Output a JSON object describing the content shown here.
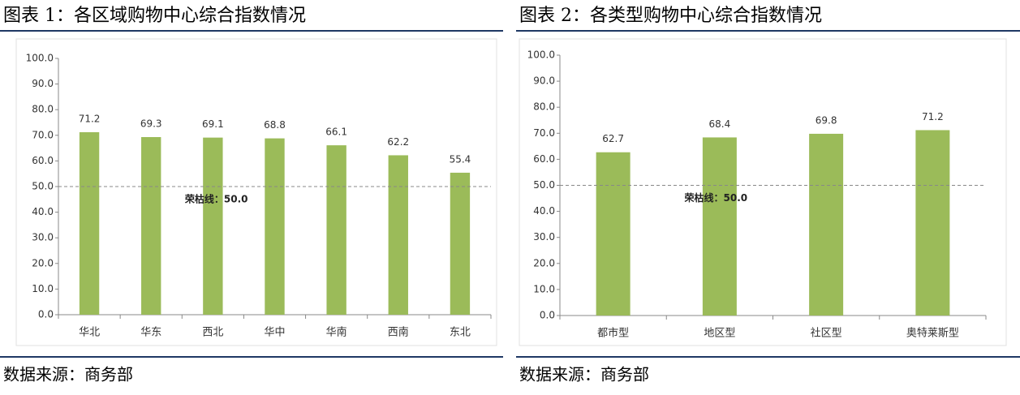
{
  "chart_data": [
    {
      "type": "bar",
      "title": "图表 1：各区域购物中心综合指数情况",
      "source": "数据来源：商务部",
      "categories": [
        "华北",
        "华东",
        "西北",
        "华中",
        "华南",
        "西南",
        "东北"
      ],
      "values": [
        71.2,
        69.3,
        69.1,
        68.8,
        66.1,
        62.2,
        55.4
      ],
      "color": "#9bbb59",
      "ylim": [
        0,
        100
      ],
      "yticks": [
        {
          "value": 0,
          "label": "0.0"
        },
        {
          "value": 10,
          "label": "10.0"
        },
        {
          "value": 20,
          "label": "20.0"
        },
        {
          "value": 30,
          "label": "30.0"
        },
        {
          "value": 40,
          "label": "40.0"
        },
        {
          "value": 50,
          "label": "50.0"
        },
        {
          "value": 60,
          "label": "60.0"
        },
        {
          "value": 70,
          "label": "70.0"
        },
        {
          "value": 80,
          "label": "80.0"
        },
        {
          "value": 90,
          "label": "90.0"
        },
        {
          "value": 100,
          "label": "100.0"
        }
      ],
      "reference_line": {
        "value": 50,
        "label": "荣枯线：50.0"
      }
    },
    {
      "type": "bar",
      "title": "图表 2：各类型购物中心综合指数情况",
      "source": "数据来源：商务部",
      "categories": [
        "都市型",
        "地区型",
        "社区型",
        "奥特莱斯型"
      ],
      "values": [
        62.7,
        68.4,
        69.8,
        71.2
      ],
      "color": "#9bbb59",
      "ylim": [
        0,
        100
      ],
      "yticks": [
        {
          "value": 0,
          "label": "0.0"
        },
        {
          "value": 10,
          "label": "10.0"
        },
        {
          "value": 20,
          "label": "20.0"
        },
        {
          "value": 30,
          "label": "30.0"
        },
        {
          "value": 40,
          "label": "40.0"
        },
        {
          "value": 50,
          "label": "50.0"
        },
        {
          "value": 60,
          "label": "60.0"
        },
        {
          "value": 70,
          "label": "70.0"
        },
        {
          "value": 80,
          "label": "80.0"
        },
        {
          "value": 90,
          "label": "90.0"
        },
        {
          "value": 100,
          "label": "100.0"
        }
      ],
      "reference_line": {
        "value": 50,
        "label": "荣枯线：50.0"
      }
    }
  ]
}
